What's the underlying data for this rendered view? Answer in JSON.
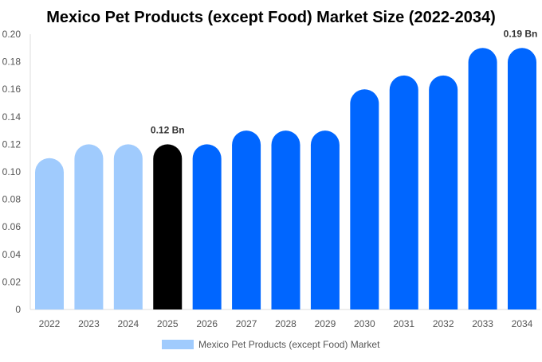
{
  "chart_data": {
    "type": "bar",
    "title": "Mexico Pet Products (except Food) Market Size (2022-2034)",
    "xlabel": "",
    "ylabel": "",
    "ylim": [
      0,
      0.2
    ],
    "yticks": [
      "0",
      "0.02",
      "0.04",
      "0.06",
      "0.08",
      "0.10",
      "0.12",
      "0.14",
      "0.16",
      "0.18",
      "0.20"
    ],
    "categories": [
      "2022",
      "2023",
      "2024",
      "2025",
      "2026",
      "2027",
      "2028",
      "2029",
      "2030",
      "2031",
      "2032",
      "2033",
      "2034"
    ],
    "series": [
      {
        "name": "Mexico Pet Products (except Food) Market",
        "values": [
          0.11,
          0.12,
          0.12,
          0.12,
          0.12,
          0.13,
          0.13,
          0.13,
          0.16,
          0.17,
          0.17,
          0.19,
          0.19
        ]
      }
    ],
    "bar_colors": [
      "#a0cbfd",
      "#a0cbfd",
      "#a0cbfd",
      "#000000",
      "#0066ff",
      "#0066ff",
      "#0066ff",
      "#0066ff",
      "#0066ff",
      "#0066ff",
      "#0066ff",
      "#0066ff",
      "#0066ff"
    ],
    "annotations": [
      {
        "category": "2025",
        "text": "0.12 Bn"
      },
      {
        "category": "2034",
        "text": "0.19 Bn"
      }
    ],
    "legend": {
      "placement": "bottom",
      "color": "#a0cbfd"
    },
    "grid": false
  }
}
